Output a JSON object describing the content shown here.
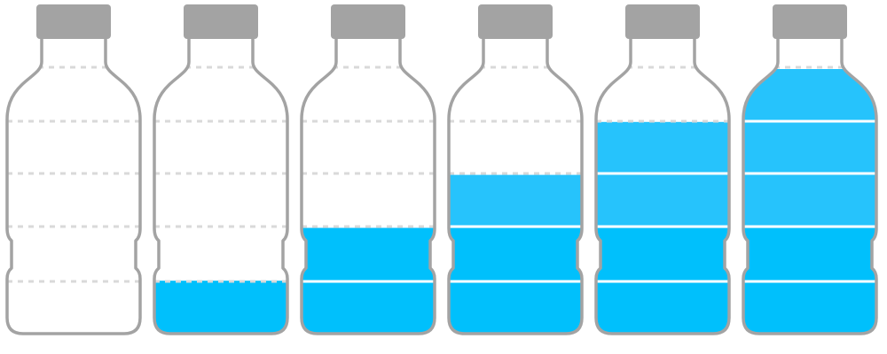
{
  "colors": {
    "background": "#ffffff",
    "outline": "#a3a3a3",
    "cap": "#a3a3a3",
    "water_dark": "#00c0fc",
    "water_light": "#26c3fc",
    "dash_empty": "#d9d9d9",
    "line_filled": "#ffffff"
  },
  "bottles": [
    {
      "fill_fraction": 0.0
    },
    {
      "fill_fraction": 0.2
    },
    {
      "fill_fraction": 0.4
    },
    {
      "fill_fraction": 0.6
    },
    {
      "fill_fraction": 0.8
    },
    {
      "fill_fraction": 1.0
    }
  ]
}
